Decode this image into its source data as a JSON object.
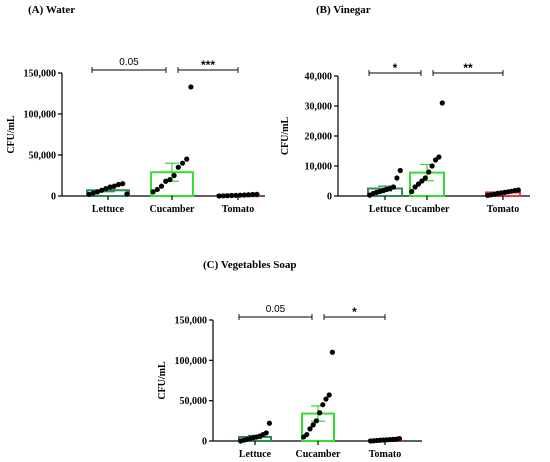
{
  "chart_data": [
    {
      "type": "bar",
      "title": "(A) Water",
      "ylabel": "CFU/mL",
      "categories": [
        "Lettuce",
        "Cucamber",
        "Tomato"
      ],
      "ylim": [
        0,
        150000
      ],
      "yticks": [
        0,
        50000,
        100000,
        150000
      ],
      "ytick_labels": [
        "0",
        "50,000",
        "100,000",
        "150,000"
      ],
      "bar_colors": [
        "#2e8b57",
        "#33dd33",
        "#e53935"
      ],
      "values": [
        7000,
        29000,
        700
      ],
      "sem": [
        1800,
        11000,
        300
      ],
      "points": [
        [
          2000,
          3500,
          5000,
          7000,
          9000,
          11000,
          12000,
          14000,
          15000,
          2500
        ],
        [
          5000,
          8000,
          12000,
          18000,
          20000,
          25000,
          35000,
          40000,
          45000,
          133000
        ],
        [
          0,
          200,
          400,
          600,
          800,
          1000,
          1200,
          1500,
          1800,
          2000
        ]
      ],
      "comparisons": [
        {
          "from": 0,
          "to": 1,
          "label": "0.05"
        },
        {
          "from": 1,
          "to": 2,
          "label": "***"
        }
      ]
    },
    {
      "type": "bar",
      "title": "(B) Vinegar",
      "ylabel": "CFU/mL",
      "categories": [
        "Lettuce",
        "Cucamber",
        "Tomato"
      ],
      "ylim": [
        0,
        40000
      ],
      "yticks": [
        0,
        10000,
        20000,
        30000,
        40000
      ],
      "ytick_labels": [
        "0",
        "10,000",
        "20,000",
        "30,000",
        "40,000"
      ],
      "bar_colors": [
        "#2e8b57",
        "#33dd33",
        "#e53935"
      ],
      "values": [
        2500,
        7800,
        1200
      ],
      "sem": [
        800,
        2700,
        350
      ],
      "points": [
        [
          300,
          800,
          1200,
          1500,
          1800,
          2200,
          2500,
          3000,
          6000,
          8500
        ],
        [
          1500,
          3000,
          4000,
          5000,
          6000,
          8000,
          10000,
          12000,
          13000,
          31000
        ],
        [
          200,
          400,
          600,
          800,
          1000,
          1200,
          1400,
          1600,
          1800,
          2000
        ]
      ],
      "comparisons": [
        {
          "from": 0,
          "to": 1,
          "label": "*"
        },
        {
          "from": 1,
          "to": 2,
          "label": "**"
        }
      ]
    },
    {
      "type": "bar",
      "title": "(C) Vegetables Soap",
      "ylabel": "CFU/mL",
      "categories": [
        "Lettuce",
        "Cucamber",
        "Tomato"
      ],
      "ylim": [
        0,
        150000
      ],
      "yticks": [
        0,
        50000,
        100000,
        150000
      ],
      "ytick_labels": [
        "0",
        "50,000",
        "100,000",
        "150,000"
      ],
      "bar_colors": [
        "#2e8b57",
        "#33dd33",
        "#e53935"
      ],
      "values": [
        5000,
        34000,
        1000
      ],
      "sem": [
        2000,
        9500,
        350
      ],
      "points": [
        [
          0,
          1000,
          2000,
          3000,
          4000,
          5000,
          6000,
          8000,
          10000,
          22000
        ],
        [
          5000,
          8000,
          15000,
          20000,
          25000,
          35000,
          45000,
          52000,
          57000,
          110000
        ],
        [
          0,
          300,
          600,
          900,
          1200,
          1500,
          1800,
          2000,
          2200,
          3000
        ]
      ],
      "comparisons": [
        {
          "from": 0,
          "to": 1,
          "label": "0.05"
        },
        {
          "from": 1,
          "to": 2,
          "label": "*"
        }
      ]
    }
  ]
}
